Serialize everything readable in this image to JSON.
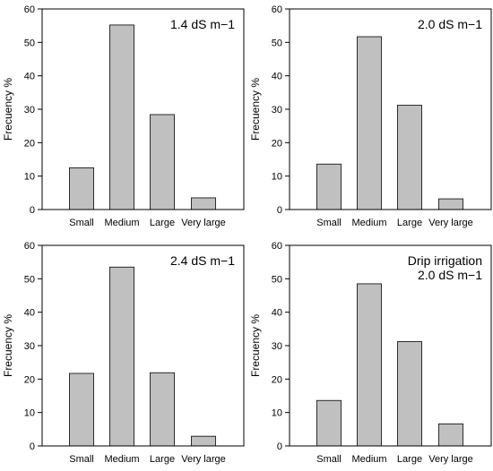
{
  "chart_data": [
    {
      "type": "bar",
      "annotation": [
        "1.4 dS m−1"
      ],
      "categories": [
        "Small",
        "Medium",
        "Large",
        "Very large"
      ],
      "values": [
        12.5,
        55.2,
        28.4,
        3.5
      ],
      "xlabel": "",
      "ylabel": "Frecuency %",
      "ylim": [
        0,
        60
      ],
      "yticks": [
        "0",
        "10",
        "20",
        "30",
        "40",
        "50",
        "60"
      ],
      "grid": false,
      "bar_color": "#c0c0c0"
    },
    {
      "type": "bar",
      "annotation": [
        "2.0 dS m−1"
      ],
      "categories": [
        "Small",
        "Medium",
        "Large",
        "Very large"
      ],
      "values": [
        13.6,
        51.7,
        31.2,
        3.2
      ],
      "xlabel": "",
      "ylabel": "Frecuency %",
      "ylim": [
        0,
        60
      ],
      "yticks": [
        "0",
        "10",
        "20",
        "30",
        "40",
        "50",
        "60"
      ],
      "grid": false,
      "bar_color": "#c0c0c0"
    },
    {
      "type": "bar",
      "annotation": [
        "2.4 dS m−1"
      ],
      "categories": [
        "Small",
        "Medium",
        "Large",
        "Very large"
      ],
      "values": [
        21.7,
        53.5,
        21.9,
        2.9
      ],
      "xlabel": "",
      "ylabel": "Frecuency %",
      "ylim": [
        0,
        60
      ],
      "yticks": [
        "0",
        "10",
        "20",
        "30",
        "40",
        "50",
        "60"
      ],
      "grid": false,
      "bar_color": "#c0c0c0"
    },
    {
      "type": "bar",
      "annotation": [
        "Drip irrigation",
        "2.0 dS m−1"
      ],
      "categories": [
        "Small",
        "Medium",
        "Large",
        "Very large"
      ],
      "values": [
        13.6,
        48.5,
        31.2,
        6.6
      ],
      "xlabel": "",
      "ylabel": "Frecuency %",
      "ylim": [
        0,
        60
      ],
      "yticks": [
        "0",
        "10",
        "20",
        "30",
        "40",
        "50",
        "60"
      ],
      "grid": false,
      "bar_color": "#c0c0c0"
    }
  ]
}
